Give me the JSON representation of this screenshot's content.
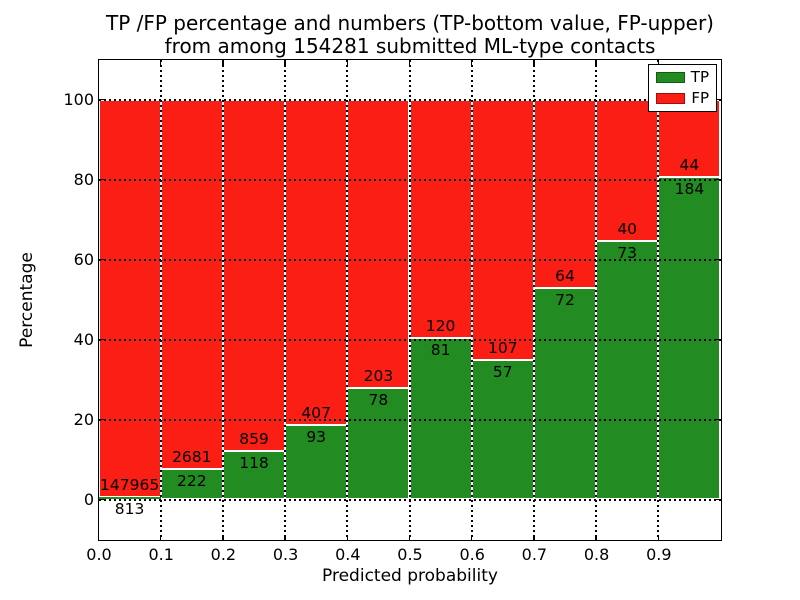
{
  "title": {
    "line1": "TP /FP percentage and numbers (TP-bottom value, FP-upper)",
    "line2": "from among 154281 submitted ML-type contacts"
  },
  "axes": {
    "ylabel": "Percentage",
    "xlabel": "Predicted probability",
    "ytick_labels": [
      "0",
      "20",
      "40",
      "60",
      "80",
      "100"
    ],
    "ytick_values": [
      0,
      20,
      40,
      60,
      80,
      100
    ],
    "xtick_labels": [
      "0.0",
      "0.1",
      "0.2",
      "0.3",
      "0.4",
      "0.5",
      "0.6",
      "0.7",
      "0.8",
      "0.9"
    ],
    "xtick_values": [
      0,
      0.1,
      0.2,
      0.3,
      0.4,
      0.5,
      0.6,
      0.7,
      0.8,
      0.9
    ],
    "ylim": [
      -10,
      110
    ],
    "xlim": [
      0,
      1
    ]
  },
  "legend": {
    "position": "upper right",
    "items": [
      {
        "label": "TP",
        "color": "#228b22",
        "border": "#115c11"
      },
      {
        "label": "FP",
        "color": "#fa1e14",
        "border": "#99120d"
      }
    ]
  },
  "chart_data": {
    "type": "bar",
    "stacked": true,
    "normalized": "each bar scaled to 100 percent; counts shown as labels (TP bottom value, FP upper)",
    "title": "TP /FP percentage and numbers (TP-bottom value, FP-upper) from among 154281 submitted ML-type contacts",
    "xlabel": "Predicted probability",
    "ylabel": "Percentage",
    "categories": [
      "0.0-0.1",
      "0.1-0.2",
      "0.2-0.3",
      "0.3-0.4",
      "0.4-0.5",
      "0.5-0.6",
      "0.6-0.7",
      "0.7-0.8",
      "0.8-0.9",
      "0.9-1.0"
    ],
    "series": [
      {
        "name": "TP",
        "color": "#228b22",
        "counts": [
          813,
          222,
          118,
          93,
          78,
          81,
          57,
          72,
          73,
          184
        ],
        "percent": [
          0.5,
          7.6,
          12.1,
          18.6,
          27.8,
          40.3,
          34.8,
          52.9,
          64.6,
          80.7
        ]
      },
      {
        "name": "FP",
        "color": "#fa1e14",
        "counts": [
          147965,
          2681,
          859,
          407,
          203,
          120,
          107,
          64,
          40,
          44
        ],
        "percent": [
          99.5,
          92.4,
          87.9,
          81.4,
          72.2,
          59.7,
          65.2,
          47.1,
          35.4,
          19.3
        ]
      }
    ],
    "total_submitted": 154281,
    "ylim": [
      -10,
      110
    ],
    "grid": true,
    "legend_position": "upper right"
  }
}
